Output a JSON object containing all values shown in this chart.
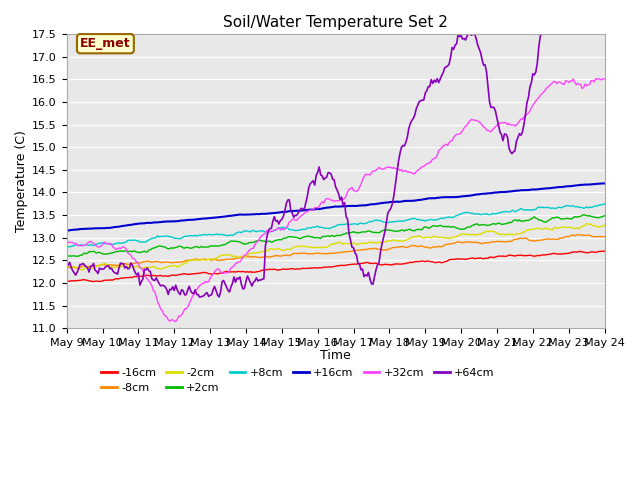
{
  "title": "Soil/Water Temperature Set 2",
  "xlabel": "Time",
  "ylabel": "Temperature (C)",
  "ylim": [
    11.0,
    17.5
  ],
  "xlim": [
    0,
    15
  ],
  "x_tick_labels": [
    "May 9",
    "May 10",
    "May 11",
    "May 12",
    "May 13",
    "May 14",
    "May 15",
    "May 16",
    "May 17",
    "May 18",
    "May 19",
    "May 20",
    "May 21",
    "May 22",
    "May 23",
    "May 24"
  ],
  "annotation_text": "EE_met",
  "annotation_bg": "#ffffcc",
  "annotation_border": "#996600",
  "background_color": "#e8e8e8",
  "series_order": [
    "-16cm",
    "-8cm",
    "-2cm",
    "+2cm",
    "+8cm",
    "+16cm",
    "+32cm",
    "+64cm"
  ],
  "series": {
    "-16cm": {
      "color": "#ff0000",
      "lw": 1.0
    },
    "-8cm": {
      "color": "#ff8800",
      "lw": 1.0
    },
    "-2cm": {
      "color": "#dddd00",
      "lw": 1.0
    },
    "+2cm": {
      "color": "#00bb00",
      "lw": 1.0
    },
    "+8cm": {
      "color": "#00cccc",
      "lw": 1.0
    },
    "+16cm": {
      "color": "#0000cc",
      "lw": 1.5
    },
    "+32cm": {
      "color": "#ff44ff",
      "lw": 1.0
    },
    "+64cm": {
      "color": "#8800bb",
      "lw": 1.2
    }
  },
  "title_fontsize": 11,
  "axis_fontsize": 9,
  "tick_fontsize": 8,
  "legend_fontsize": 8
}
